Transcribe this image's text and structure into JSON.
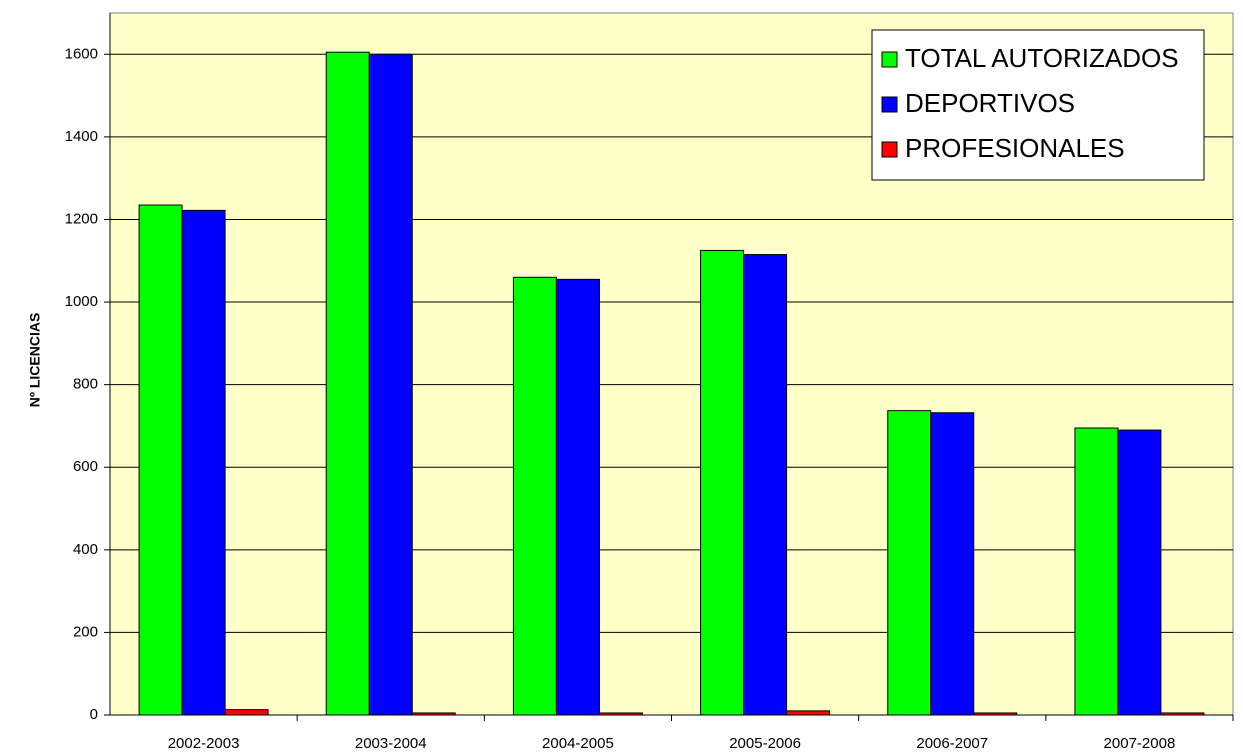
{
  "chart_data": {
    "type": "bar",
    "y_label": "Nº LICENCIAS",
    "categories": [
      "2002-2003",
      "2003-2004",
      "2004-2005",
      "2005-2006",
      "2006-2007",
      "2007-2008"
    ],
    "series": [
      {
        "name": "TOTAL AUTORIZADOS",
        "color": "#00ff00",
        "values": [
          1235,
          1605,
          1060,
          1125,
          737,
          695
        ]
      },
      {
        "name": "DEPORTIVOS",
        "color": "#0000ff",
        "values": [
          1222,
          1600,
          1055,
          1115,
          732,
          690
        ]
      },
      {
        "name": "PROFESIONALES",
        "color": "#ff0000",
        "values": [
          13,
          5,
          5,
          10,
          5,
          5
        ]
      }
    ],
    "ylim": [
      0,
      1700
    ],
    "yticks": [
      0,
      200,
      400,
      600,
      800,
      1000,
      1200,
      1400,
      1600
    ],
    "grid": true,
    "legend": "top-right",
    "background": "#ffffc8"
  }
}
